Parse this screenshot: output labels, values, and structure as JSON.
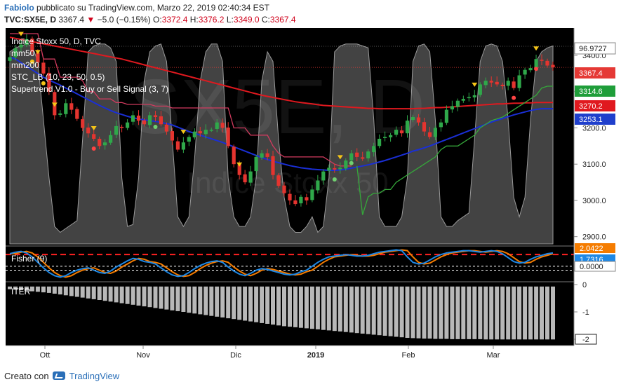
{
  "header": {
    "author": "Fabiolo",
    "published": "pubblicato su TradingView.com, Marzo 22, 2019 02:40:34 EST",
    "symbol": "TVC:SX5E, D",
    "last": "3367.4",
    "change": "−5.0 (−0.15%)",
    "o_label": "O:",
    "o": "3372.4",
    "h_label": "H:",
    "h": "3376.2",
    "l_label": "L:",
    "l": "3349.0",
    "c_label": "C:",
    "c": "3367.4"
  },
  "watermark": {
    "big": "SX5E, D",
    "small": "Indice Stoxx 50"
  },
  "legend": [
    "Indice Stoxx 50, D, TVC",
    "mm50",
    "mm200",
    "STC_LB (10, 23, 50, 0.5)",
    "Supertrend V1.0 - Buy or Sell Signal (3, 7)"
  ],
  "price_axis": {
    "ticks": [
      "3400.0",
      "3300.0",
      "3200.0",
      "3100.0",
      "3000.0",
      "2900.0"
    ],
    "labels": [
      {
        "text": "96.9727",
        "bg": "#ffffff",
        "fg": "#222222"
      },
      {
        "text": "3367.4",
        "bg": "#e53935",
        "fg": "#ffffff"
      },
      {
        "text": "3314.6",
        "bg": "#1f9e3a",
        "fg": "#ffffff"
      },
      {
        "text": "3270.2",
        "bg": "#e0191f",
        "fg": "#ffffff"
      },
      {
        "text": "3253.1",
        "bg": "#1f3fcc",
        "fg": "#ffffff"
      }
    ]
  },
  "fisher": {
    "title": "Fisher (9)",
    "labels": [
      "2.0422",
      "1.7316",
      "0.0000"
    ]
  },
  "iter": {
    "title": "ITER",
    "ticks": [
      "0",
      "-1",
      "-2"
    ]
  },
  "time_axis": [
    "Ott",
    "Nov",
    "Dic",
    "2019",
    "Feb",
    "Mar"
  ],
  "footer": {
    "prefix": "Creato con",
    "brand": "TradingView"
  },
  "colors": {
    "up": "#2fa84a",
    "down": "#e5342f",
    "mm50": "#1a2fd6",
    "mm200": "#e0191f",
    "supertrend_up": "#35a83a",
    "supertrend_down": "#d23b5f",
    "stc": "#8a8a8a",
    "fisher_blue": "#1e88e5",
    "fisher_orange": "#f57c00"
  },
  "chart_data": {
    "type": "candlestick",
    "series_close": [
      3395,
      3420,
      3430,
      3445,
      3410,
      3380,
      3350,
      3300,
      3235,
      3240,
      3268,
      3250,
      3225,
      3200,
      3185,
      3170,
      3150,
      3160,
      3180,
      3205,
      3200,
      3215,
      3235,
      3220,
      3210,
      3235,
      3230,
      3210,
      3190,
      3165,
      3140,
      3160,
      3175,
      3190,
      3185,
      3195,
      3195,
      3215,
      3200,
      3150,
      3100,
      3070,
      3050,
      3080,
      3120,
      3130,
      3120,
      3070,
      3040,
      3020,
      3000,
      2990,
      3010,
      3000,
      3030,
      3055,
      3080,
      3090,
      3085,
      3090,
      3110,
      3130,
      3120,
      3115,
      3135,
      3150,
      3170,
      3175,
      3180,
      3195,
      3185,
      3220,
      3230,
      3215,
      3190,
      3175,
      3200,
      3215,
      3250,
      3260,
      3275,
      3280,
      3285,
      3290,
      3320,
      3330,
      3325,
      3320,
      3315,
      3330,
      3310,
      3345,
      3360,
      3365,
      3390,
      3385,
      3372,
      3367
    ],
    "mm50": [
      3395,
      3390,
      3380,
      3370,
      3360,
      3350,
      3340,
      3332,
      3325,
      3318,
      3310,
      3302,
      3294,
      3286,
      3278,
      3270,
      3262,
      3255,
      3248,
      3242,
      3237,
      3232,
      3228,
      3225,
      3222,
      3220,
      3218,
      3215,
      3212,
      3208,
      3202,
      3196,
      3190,
      3185,
      3180,
      3175,
      3170,
      3165,
      3160,
      3154,
      3148,
      3142,
      3136,
      3130,
      3124,
      3118,
      3113,
      3108,
      3104,
      3100,
      3096,
      3093,
      3090,
      3088,
      3086,
      3085,
      3084,
      3083,
      3083,
      3084,
      3086,
      3089,
      3092,
      3095,
      3098,
      3102,
      3106,
      3110,
      3115,
      3120,
      3125,
      3130,
      3136,
      3140,
      3145,
      3150,
      3156,
      3162,
      3168,
      3174,
      3180,
      3186,
      3192,
      3198,
      3204,
      3210,
      3216,
      3221,
      3226,
      3231,
      3236,
      3240,
      3244,
      3248,
      3251,
      3253,
      3253,
      3253
    ],
    "mm200": [
      3450,
      3447,
      3444,
      3441,
      3438,
      3435,
      3432,
      3429,
      3426,
      3423,
      3420,
      3417,
      3414,
      3411,
      3408,
      3405,
      3402,
      3399,
      3396,
      3393,
      3390,
      3386,
      3382,
      3378,
      3374,
      3370,
      3366,
      3362,
      3358,
      3354,
      3350,
      3346,
      3342,
      3338,
      3334,
      3330,
      3326,
      3322,
      3318,
      3314,
      3310,
      3306,
      3302,
      3298,
      3294,
      3290,
      3287,
      3284,
      3281,
      3278,
      3275,
      3272,
      3270,
      3268,
      3266,
      3264,
      3262,
      3261,
      3260,
      3259,
      3258,
      3257,
      3256,
      3255,
      3254,
      3254,
      3253,
      3253,
      3253,
      3253,
      3253,
      3253,
      3253,
      3254,
      3254,
      3255,
      3256,
      3256,
      3257,
      3258,
      3259,
      3260,
      3261,
      3262,
      3263,
      3264,
      3265,
      3266,
      3266,
      3267,
      3268,
      3268,
      3269,
      3269,
      3270,
      3270,
      3270,
      3270
    ],
    "supertrend": [
      3460,
      3460,
      3460,
      3460,
      3460,
      3460,
      3390,
      3390,
      3390,
      3340,
      3340,
      3340,
      3340,
      3330,
      3300,
      3300,
      3280,
      3280,
      3280,
      3270,
      3270,
      3265,
      3265,
      3265,
      3265,
      3265,
      3260,
      3260,
      3260,
      3255,
      3255,
      3255,
      3255,
      3255,
      3255,
      3255,
      3255,
      3255,
      3255,
      3255,
      3200,
      3200,
      3200,
      3180,
      3180,
      3180,
      3180,
      3150,
      3130,
      3120,
      3120,
      3120,
      3120,
      3120,
      3120,
      3120,
      3120,
      3110,
      3100,
      3095,
      3095,
      3095,
      3095,
      2960,
      3010,
      3020,
      3020,
      3030,
      3030,
      3050,
      3060,
      3070,
      3080,
      3090,
      3100,
      3110,
      3120,
      3140,
      3150,
      3150,
      3150,
      3160,
      3170,
      3180,
      3200,
      3210,
      3220,
      3225,
      3230,
      3240,
      3250,
      3260,
      3270,
      3280,
      3290,
      3310,
      3315,
      3315
    ],
    "stc": [
      0.95,
      0.97,
      0.98,
      0.99,
      0.98,
      0.9,
      0.6,
      0.3,
      0.05,
      0.02,
      0.04,
      0.06,
      0.08,
      0.5,
      0.95,
      0.98,
      0.99,
      0.99,
      0.97,
      0.9,
      0.3,
      0.05,
      0.06,
      0.3,
      0.8,
      0.95,
      0.98,
      0.99,
      0.9,
      0.5,
      0.1,
      0.05,
      0.1,
      0.4,
      0.8,
      0.95,
      0.99,
      0.99,
      0.9,
      0.3,
      0.1,
      0.05,
      0.05,
      0.1,
      0.3,
      0.8,
      0.95,
      0.9,
      0.5,
      0.2,
      0.05,
      0.02,
      0.02,
      0.05,
      0.1,
      0.02,
      0.05,
      0.3,
      0.95,
      0.98,
      0.99,
      0.99,
      0.99,
      0.98,
      0.97,
      0.6,
      0.1,
      0.05,
      0.05,
      0.05,
      0.1,
      0.3,
      0.9,
      0.98,
      0.99,
      0.95,
      0.6,
      0.1,
      0.05,
      0.05,
      0.08,
      0.1,
      0.12,
      0.5,
      0.9,
      0.98,
      0.99,
      0.98,
      0.9,
      0.6,
      0.2,
      0.1,
      0.2,
      0.6,
      0.9,
      0.95,
      0.97,
      0.98
    ],
    "fisher": [
      1.6,
      1.8,
      1.9,
      1.7,
      1.2,
      0.5,
      -0.2,
      -0.8,
      -1.2,
      -1.4,
      -1.2,
      -0.8,
      -0.5,
      -0.3,
      -0.2,
      -0.5,
      -0.8,
      -0.9,
      -0.6,
      -0.1,
      0.3,
      0.7,
      1.0,
      0.9,
      0.6,
      0.5,
      0.3,
      -0.2,
      -0.7,
      -1.1,
      -1.3,
      -1.2,
      -0.8,
      -0.3,
      0.1,
      0.4,
      0.6,
      0.7,
      0.5,
      -0.1,
      -0.6,
      -1.0,
      -1.2,
      -0.9,
      -0.5,
      -0.3,
      -0.4,
      -0.6,
      -0.8,
      -1.0,
      -1.1,
      -1.0,
      -0.7,
      -0.5,
      0.0,
      0.5,
      0.9,
      1.2,
      1.3,
      1.4,
      1.5,
      1.4,
      1.3,
      1.3,
      1.4,
      1.6,
      1.8,
      1.9,
      2.0,
      2.1,
      2.0,
      1.2,
      0.5,
      0.3,
      0.4,
      0.8,
      1.2,
      1.5,
      1.7,
      1.8,
      1.9,
      2.0,
      2.0,
      1.9,
      1.8,
      1.9,
      2.0,
      1.9,
      1.6,
      1.1,
      0.6,
      0.4,
      0.5,
      0.9,
      1.2,
      1.4,
      1.6,
      1.7
    ],
    "iter": [
      -0.1,
      -0.12,
      -0.14,
      -0.16,
      -0.18,
      -0.2,
      -0.22,
      -0.24,
      -0.27,
      -0.3,
      -0.33,
      -0.36,
      -0.39,
      -0.42,
      -0.45,
      -0.48,
      -0.51,
      -0.54,
      -0.57,
      -0.6,
      -0.63,
      -0.66,
      -0.69,
      -0.72,
      -0.75,
      -0.78,
      -0.81,
      -0.84,
      -0.87,
      -0.9,
      -0.93,
      -0.96,
      -0.99,
      -1.02,
      -1.05,
      -1.08,
      -1.11,
      -1.14,
      -1.17,
      -1.2,
      -1.23,
      -1.26,
      -1.29,
      -1.32,
      -1.35,
      -1.38,
      -1.41,
      -1.44,
      -1.47,
      -1.5,
      -1.52,
      -1.54,
      -1.56,
      -1.58,
      -1.6,
      -1.62,
      -1.64,
      -1.66,
      -1.68,
      -1.7,
      -1.72,
      -1.74,
      -1.76,
      -1.78,
      -1.8,
      -1.82,
      -1.84,
      -1.86,
      -1.88,
      -1.9,
      -1.92,
      -1.94,
      -1.95,
      -1.96,
      -1.97,
      -1.97,
      -1.98,
      -1.98,
      -1.98,
      -1.99,
      -1.99,
      -1.99,
      -1.99,
      -1.99,
      -1.99,
      -2.0,
      -2.0,
      -2.0,
      -2.0,
      -2.0,
      -2.0,
      -2.0,
      -2.0,
      -2.0,
      -2.0,
      -2.0,
      -2.0,
      -2.0
    ],
    "ylim": [
      2880,
      3460
    ],
    "fisher_lim": [
      -1.8,
      2.5
    ],
    "iter_lim": [
      -2.1,
      0.1
    ]
  }
}
